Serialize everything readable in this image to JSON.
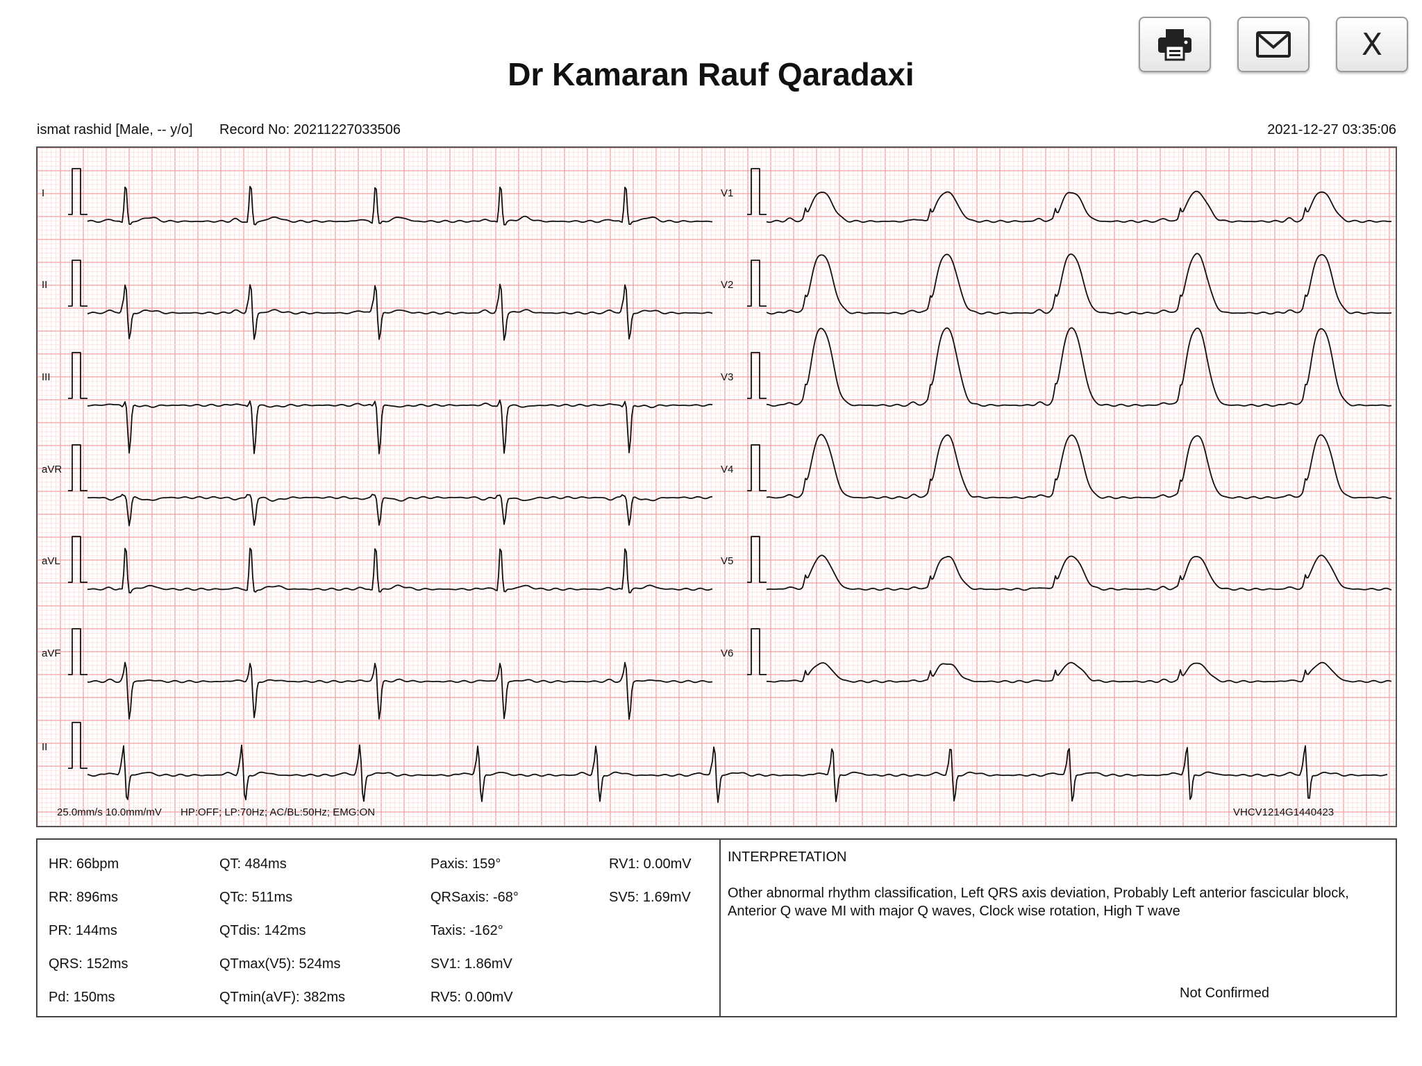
{
  "title": "Dr Kamaran Rauf Qaradaxi",
  "toolbar": {
    "print_icon": "printer-icon",
    "email_icon": "envelope-icon",
    "close_label": "X"
  },
  "header": {
    "patient": "ismat rashid [Male, -- y/o]",
    "record_no": "Record No: 20211227033506",
    "datetime": "2021-12-27 03:35:06"
  },
  "ecg": {
    "leads_left": [
      "I",
      "II",
      "III",
      "aVR",
      "aVL",
      "aVF"
    ],
    "leads_right": [
      "V1",
      "V2",
      "V3",
      "V4",
      "V5",
      "V6"
    ],
    "rhythm_lead": "II",
    "settings": "25.0mm/s  10.0mm/mV",
    "filters": "HP:OFF; LP:70Hz; AC/BL:50Hz; EMG:ON",
    "device_id": "VHCV1214G1440423",
    "grid_color": "#f2a0a0",
    "minor_grid_color": "#fbdede",
    "trace_color": "#111111"
  },
  "measurements": {
    "col1": [
      "HR: 66bpm",
      "RR: 896ms",
      "PR: 144ms",
      "QRS: 152ms",
      "Pd: 150ms"
    ],
    "col2": [
      "QT: 484ms",
      "QTc: 511ms",
      "QTdis: 142ms",
      "QTmax(V5): 524ms",
      "QTmin(aVF): 382ms"
    ],
    "col3": [
      "Paxis: 159°",
      "QRSaxis: -68°",
      "Taxis: -162°",
      "SV1: 1.86mV",
      "RV5: 0.00mV"
    ],
    "col4": [
      "RV1: 0.00mV",
      "SV5: 1.69mV"
    ]
  },
  "interpretation": {
    "heading": "INTERPRETATION",
    "text": "Other abnormal rhythm classification, Left QRS axis deviation, Probably Left anterior fascicular block, Anterior Q wave MI with major Q waves, Clock wise rotation, High T wave",
    "status": "Not Confirmed"
  }
}
